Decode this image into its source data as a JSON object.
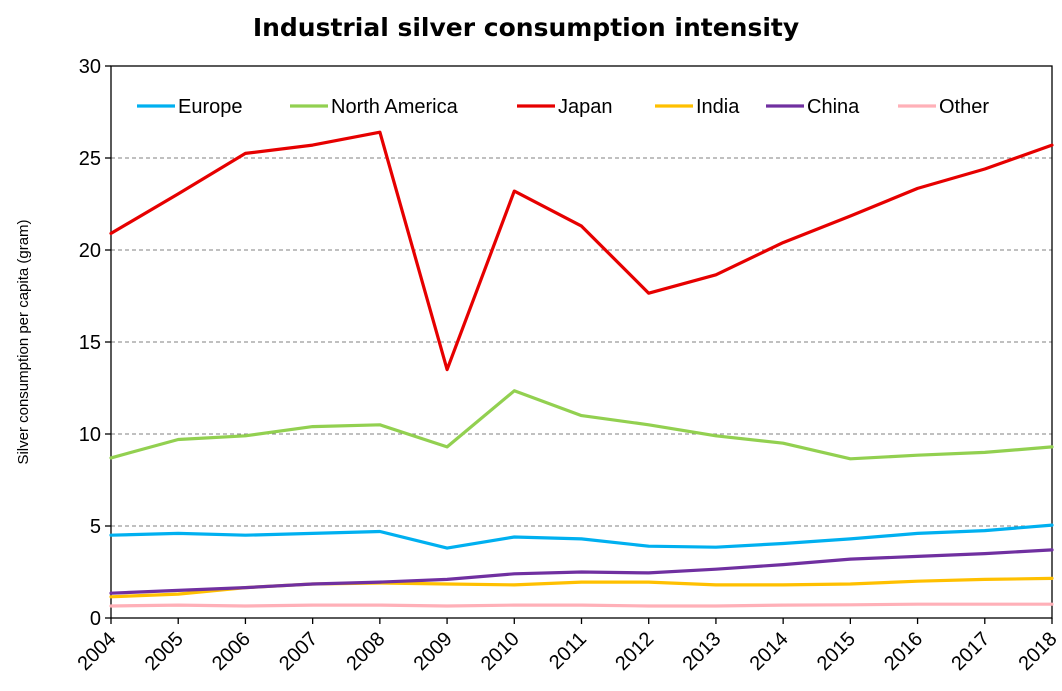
{
  "chart_data": {
    "type": "line",
    "title": "Industrial silver consumption intensity",
    "xlabel": "",
    "ylabel": "Silver consumption per capita (gram)",
    "x": [
      "2004",
      "2005",
      "2006",
      "2007",
      "2008",
      "2009",
      "2010",
      "2011",
      "2012",
      "2013",
      "2014",
      "2015",
      "2016",
      "2017",
      "2018"
    ],
    "ylim": [
      0,
      30
    ],
    "yticks": [
      "0",
      "5",
      "10",
      "15",
      "20",
      "25",
      "30"
    ],
    "grid": true,
    "legend_position": "top",
    "series": [
      {
        "name": "Europe",
        "color": "#00B0F0",
        "values": [
          4.5,
          4.6,
          4.5,
          4.6,
          4.7,
          3.8,
          4.4,
          4.3,
          3.9,
          3.85,
          4.05,
          4.3,
          4.6,
          4.75,
          5.05
        ]
      },
      {
        "name": "North America",
        "color": "#92D050",
        "values": [
          8.7,
          9.7,
          9.9,
          10.4,
          10.5,
          9.3,
          12.35,
          11.0,
          10.5,
          9.9,
          9.5,
          8.65,
          8.85,
          9.0,
          9.3
        ]
      },
      {
        "name": "Japan",
        "color": "#E60000",
        "values": [
          20.9,
          23.05,
          25.25,
          25.7,
          26.4,
          13.5,
          23.2,
          21.3,
          17.65,
          18.65,
          20.4,
          21.85,
          23.35,
          24.4,
          25.7
        ]
      },
      {
        "name": "India",
        "color": "#FFC000",
        "values": [
          1.15,
          1.3,
          1.65,
          1.85,
          1.9,
          1.85,
          1.8,
          1.95,
          1.95,
          1.8,
          1.8,
          1.85,
          2.0,
          2.1,
          2.15
        ]
      },
      {
        "name": "China",
        "color": "#7030A0",
        "values": [
          1.35,
          1.5,
          1.65,
          1.85,
          1.95,
          2.1,
          2.4,
          2.5,
          2.45,
          2.65,
          2.9,
          3.2,
          3.35,
          3.5,
          3.7
        ]
      },
      {
        "name": "Other",
        "color": "#FFB0B8",
        "values": [
          0.65,
          0.7,
          0.65,
          0.7,
          0.7,
          0.65,
          0.7,
          0.7,
          0.65,
          0.65,
          0.7,
          0.72,
          0.75,
          0.75,
          0.75
        ]
      }
    ]
  }
}
